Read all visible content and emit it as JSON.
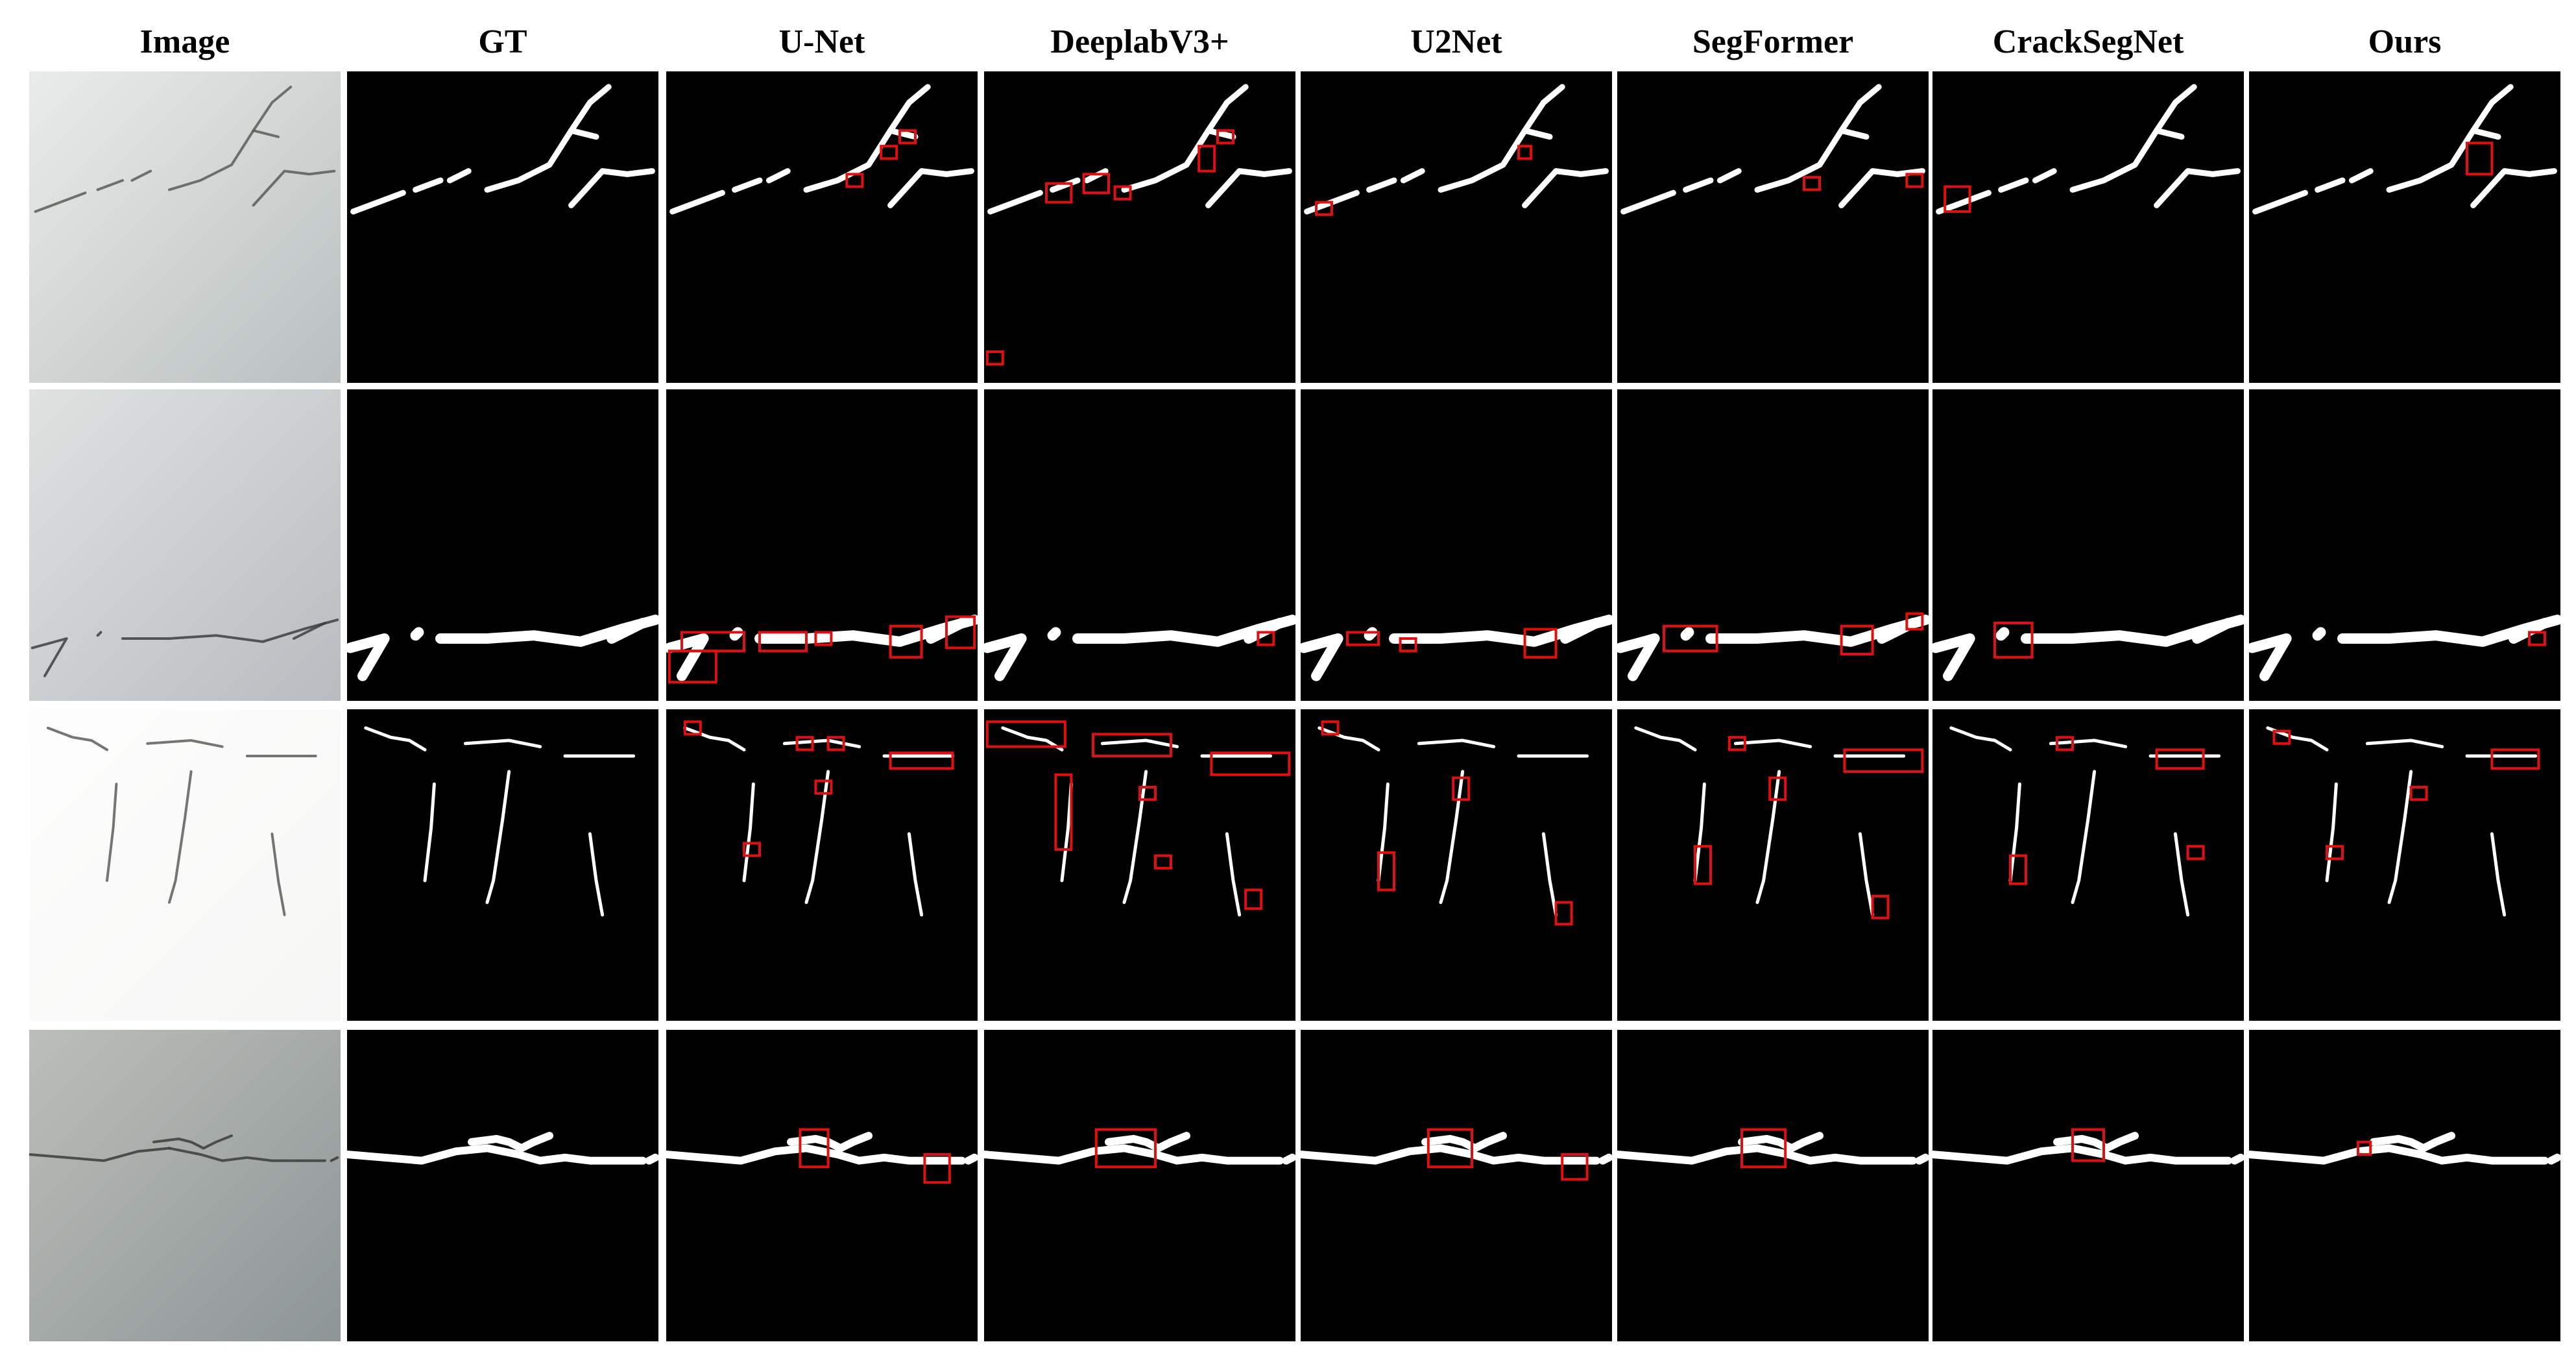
{
  "columns": [
    "Image",
    "GT",
    "U-Net",
    "DeeplabV3+",
    "U2Net",
    "SegFormer",
    "CrackSegNet",
    "Ours"
  ],
  "rows": [
    {
      "photo_palette": [
        "#b9bfbf",
        "#e9ecea",
        "#5c5d57"
      ],
      "gt_stroke_width": 9,
      "cracks": [
        [
          [
            0.02,
            0.45
          ],
          [
            0.1,
            0.42
          ],
          [
            0.18,
            0.39
          ]
        ],
        [
          [
            0.22,
            0.38
          ],
          [
            0.3,
            0.35
          ]
        ],
        [
          [
            0.33,
            0.35
          ],
          [
            0.39,
            0.32
          ]
        ],
        [
          [
            0.45,
            0.38
          ],
          [
            0.55,
            0.35
          ],
          [
            0.65,
            0.3
          ],
          [
            0.72,
            0.19
          ],
          [
            0.78,
            0.1
          ],
          [
            0.84,
            0.05
          ]
        ],
        [
          [
            0.72,
            0.19
          ],
          [
            0.8,
            0.21
          ]
        ],
        [
          [
            0.72,
            0.43
          ],
          [
            0.82,
            0.32
          ],
          [
            0.9,
            0.33
          ],
          [
            0.98,
            0.32
          ]
        ]
      ],
      "red_boxes": [
        [],
        [],
        [
          [
            0.58,
            0.33,
            0.05,
            0.04
          ],
          [
            0.69,
            0.24,
            0.05,
            0.04
          ],
          [
            0.75,
            0.19,
            0.05,
            0.04
          ]
        ],
        [
          [
            0.2,
            0.36,
            0.08,
            0.06
          ],
          [
            0.32,
            0.33,
            0.08,
            0.06
          ],
          [
            0.42,
            0.37,
            0.05,
            0.04
          ],
          [
            0.69,
            0.24,
            0.05,
            0.08
          ],
          [
            0.75,
            0.19,
            0.05,
            0.04
          ],
          [
            0.01,
            0.9,
            0.05,
            0.04
          ]
        ],
        [
          [
            0.05,
            0.42,
            0.05,
            0.04
          ],
          [
            0.7,
            0.24,
            0.04,
            0.04
          ]
        ],
        [
          [
            0.6,
            0.34,
            0.05,
            0.04
          ],
          [
            0.93,
            0.33,
            0.05,
            0.04
          ]
        ],
        [
          [
            0.04,
            0.37,
            0.08,
            0.08
          ]
        ],
        [
          [
            0.7,
            0.23,
            0.08,
            0.1
          ]
        ]
      ]
    },
    {
      "photo_palette": [
        "#b8bcc0",
        "#dfe2e1",
        "#3e4140"
      ],
      "gt_stroke_width": 16,
      "cracks": [
        [
          [
            0.01,
            0.83
          ],
          [
            0.12,
            0.8
          ],
          [
            0.05,
            0.92
          ]
        ],
        [
          [
            0.22,
            0.79
          ],
          [
            0.23,
            0.78
          ]
        ],
        [
          [
            0.3,
            0.8
          ],
          [
            0.45,
            0.8
          ],
          [
            0.6,
            0.79
          ],
          [
            0.75,
            0.81
          ],
          [
            0.88,
            0.77
          ],
          [
            0.99,
            0.74
          ]
        ],
        [
          [
            0.85,
            0.8
          ],
          [
            0.95,
            0.75
          ]
        ]
      ],
      "red_boxes": [
        [],
        [],
        [
          [
            0.05,
            0.78,
            0.2,
            0.06
          ],
          [
            0.3,
            0.78,
            0.15,
            0.06
          ],
          [
            0.48,
            0.78,
            0.05,
            0.04
          ],
          [
            0.72,
            0.76,
            0.1,
            0.1
          ],
          [
            0.9,
            0.73,
            0.09,
            0.1
          ],
          [
            0.01,
            0.84,
            0.15,
            0.1
          ]
        ],
        [
          [
            0.88,
            0.78,
            0.05,
            0.04
          ]
        ],
        [
          [
            0.15,
            0.78,
            0.1,
            0.04
          ],
          [
            0.32,
            0.8,
            0.05,
            0.04
          ],
          [
            0.72,
            0.77,
            0.1,
            0.09
          ]
        ],
        [
          [
            0.15,
            0.76,
            0.17,
            0.08
          ],
          [
            0.72,
            0.76,
            0.1,
            0.09
          ],
          [
            0.93,
            0.72,
            0.05,
            0.05
          ]
        ],
        [
          [
            0.2,
            0.75,
            0.12,
            0.11
          ]
        ],
        [
          [
            0.9,
            0.78,
            0.05,
            0.04
          ]
        ]
      ]
    },
    {
      "photo_palette": [
        "#f6f6f5",
        "#fdfdfd",
        "#5b5f5b"
      ],
      "gt_stroke_width": 5,
      "cracks": [
        [
          [
            0.06,
            0.06
          ],
          [
            0.14,
            0.09
          ],
          [
            0.2,
            0.1
          ],
          [
            0.25,
            0.13
          ]
        ],
        [
          [
            0.38,
            0.11
          ],
          [
            0.52,
            0.1
          ],
          [
            0.62,
            0.12
          ]
        ],
        [
          [
            0.7,
            0.15
          ],
          [
            0.92,
            0.15
          ]
        ],
        [
          [
            0.28,
            0.24
          ],
          [
            0.27,
            0.38
          ],
          [
            0.25,
            0.55
          ]
        ],
        [
          [
            0.52,
            0.2
          ],
          [
            0.5,
            0.35
          ],
          [
            0.47,
            0.55
          ],
          [
            0.45,
            0.62
          ]
        ],
        [
          [
            0.78,
            0.4
          ],
          [
            0.8,
            0.55
          ],
          [
            0.82,
            0.66
          ]
        ]
      ],
      "red_boxes": [
        [],
        [],
        [
          [
            0.06,
            0.04,
            0.05,
            0.04
          ],
          [
            0.42,
            0.09,
            0.05,
            0.04
          ],
          [
            0.52,
            0.09,
            0.05,
            0.04
          ],
          [
            0.72,
            0.14,
            0.2,
            0.05
          ],
          [
            0.48,
            0.23,
            0.05,
            0.04
          ],
          [
            0.25,
            0.43,
            0.05,
            0.04
          ]
        ],
        [
          [
            0.01,
            0.04,
            0.25,
            0.08
          ],
          [
            0.35,
            0.08,
            0.25,
            0.07
          ],
          [
            0.73,
            0.14,
            0.25,
            0.07
          ],
          [
            0.23,
            0.21,
            0.05,
            0.24
          ],
          [
            0.5,
            0.25,
            0.05,
            0.04
          ],
          [
            0.55,
            0.47,
            0.05,
            0.04
          ],
          [
            0.84,
            0.58,
            0.05,
            0.06
          ]
        ],
        [
          [
            0.07,
            0.04,
            0.05,
            0.04
          ],
          [
            0.49,
            0.22,
            0.05,
            0.07
          ],
          [
            0.25,
            0.46,
            0.05,
            0.12
          ],
          [
            0.82,
            0.62,
            0.05,
            0.07
          ]
        ],
        [
          [
            0.73,
            0.13,
            0.25,
            0.07
          ],
          [
            0.36,
            0.09,
            0.05,
            0.04
          ],
          [
            0.49,
            0.22,
            0.05,
            0.07
          ],
          [
            0.25,
            0.44,
            0.05,
            0.12
          ],
          [
            0.82,
            0.6,
            0.05,
            0.07
          ]
        ],
        [
          [
            0.4,
            0.09,
            0.05,
            0.04
          ],
          [
            0.72,
            0.13,
            0.15,
            0.06
          ],
          [
            0.82,
            0.44,
            0.05,
            0.04
          ],
          [
            0.25,
            0.47,
            0.05,
            0.09
          ]
        ],
        [
          [
            0.08,
            0.07,
            0.05,
            0.04
          ],
          [
            0.52,
            0.25,
            0.05,
            0.04
          ],
          [
            0.25,
            0.44,
            0.05,
            0.04
          ],
          [
            0.78,
            0.13,
            0.15,
            0.06
          ]
        ]
      ]
    },
    {
      "photo_palette": [
        "#8e9596",
        "#bbbfba",
        "#3a3c38"
      ],
      "gt_stroke_width": 12,
      "cracks": [
        [
          [
            0.0,
            0.4
          ],
          [
            0.12,
            0.41
          ],
          [
            0.24,
            0.42
          ],
          [
            0.35,
            0.39
          ],
          [
            0.45,
            0.38
          ]
        ],
        [
          [
            0.4,
            0.36
          ],
          [
            0.48,
            0.35
          ],
          [
            0.52,
            0.36
          ],
          [
            0.56,
            0.38
          ],
          [
            0.6,
            0.36
          ],
          [
            0.65,
            0.34
          ]
        ],
        [
          [
            0.45,
            0.38
          ],
          [
            0.55,
            0.4
          ],
          [
            0.62,
            0.42
          ],
          [
            0.7,
            0.41
          ],
          [
            0.78,
            0.42
          ],
          [
            0.86,
            0.42
          ],
          [
            0.95,
            0.42
          ]
        ],
        [
          [
            0.97,
            0.42
          ],
          [
            0.99,
            0.41
          ]
        ]
      ],
      "red_boxes": [
        [],
        [],
        [
          [
            0.43,
            0.32,
            0.09,
            0.12
          ],
          [
            0.83,
            0.4,
            0.08,
            0.09
          ]
        ],
        [
          [
            0.36,
            0.32,
            0.19,
            0.12
          ]
        ],
        [
          [
            0.41,
            0.32,
            0.14,
            0.12
          ],
          [
            0.84,
            0.4,
            0.08,
            0.08
          ]
        ],
        [
          [
            0.4,
            0.32,
            0.14,
            0.12
          ]
        ],
        [
          [
            0.45,
            0.32,
            0.1,
            0.1
          ]
        ],
        [
          [
            0.35,
            0.36,
            0.04,
            0.04
          ]
        ]
      ]
    }
  ]
}
